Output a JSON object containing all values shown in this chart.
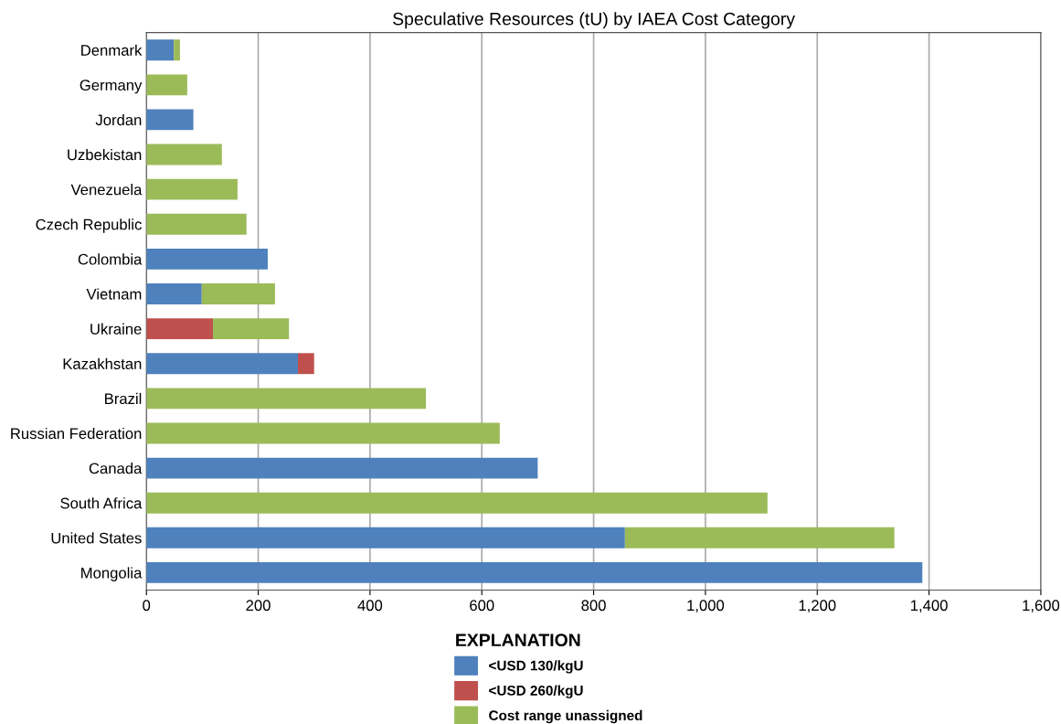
{
  "chart_data": {
    "type": "bar",
    "orientation": "horizontal",
    "stacked": true,
    "title": "Speculative Resources (tU) by IAEA Cost Category",
    "categories": [
      "Denmark",
      "Germany",
      "Jordan",
      "Uzbekistan",
      "Venezuela",
      "Czech Republic",
      "Colombia",
      "Vietnam",
      "Ukraine",
      "Kazakhstan",
      "Brazil",
      "Russian Federation",
      "Canada",
      "South Africa",
      "United States",
      "Mongolia"
    ],
    "series": [
      {
        "name": "<USD 130/kgU",
        "color": "#4f81bd",
        "values": [
          49,
          0,
          84,
          0,
          0,
          0,
          217,
          99,
          0,
          271,
          0,
          0,
          700,
          0,
          856,
          1388
        ]
      },
      {
        "name": "<USD 260/kgU",
        "color": "#c0504d",
        "values": [
          0,
          0,
          0,
          0,
          0,
          0,
          0,
          0,
          119,
          29,
          0,
          0,
          0,
          0,
          0,
          0
        ]
      },
      {
        "name": "Cost range unassigned",
        "color": "#9bbb59",
        "values": [
          11,
          73,
          0,
          135,
          163,
          179,
          0,
          131,
          136,
          0,
          500,
          632,
          0,
          1111,
          482,
          0
        ]
      }
    ],
    "xlim": [
      0,
      1600
    ],
    "xticks": [
      0,
      200,
      400,
      600,
      {
        "value": 800,
        "label": "800"
      },
      {
        "value": 1000,
        "label": "1,000"
      },
      {
        "value": 1200,
        "label": "1,200"
      },
      {
        "value": 1400,
        "label": "1,400"
      },
      {
        "value": 1600,
        "label": "1,600"
      }
    ],
    "grid": "x",
    "legend": "bottom",
    "legend_title": "EXPLANATION"
  }
}
